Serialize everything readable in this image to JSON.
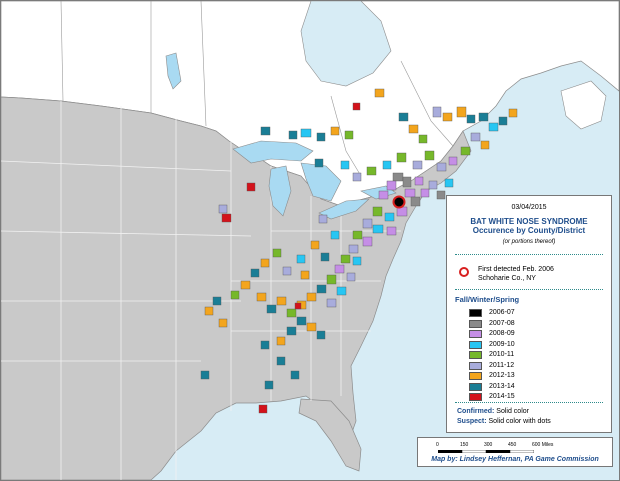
{
  "map": {
    "date": "03/04/2015",
    "title_line1": "BAT WHITE NOSE SYNDROME",
    "title_line2": "Occurence by County/District",
    "subtitle": "(or portions thereof)",
    "first_detected_line1": "First detected Feb. 2006",
    "first_detected_line2": "Schoharie Co., NY",
    "season_title": "Fall/Winter/Spring",
    "legend": [
      {
        "label": "2006-07",
        "color": "#000000"
      },
      {
        "label": "2007-08",
        "color": "#8a8a8a"
      },
      {
        "label": "2008-09",
        "color": "#c58ee6"
      },
      {
        "label": "2009-10",
        "color": "#27c6f3"
      },
      {
        "label": "2010-11",
        "color": "#76b82a"
      },
      {
        "label": "2011-12",
        "color": "#a8acdc"
      },
      {
        "label": "2012-13",
        "color": "#f3a51d"
      },
      {
        "label": "2013-14",
        "color": "#1a7e96"
      },
      {
        "label": "2014-15",
        "color": "#d3121b"
      }
    ],
    "confirmed_label": "Confirmed:",
    "confirmed_text": "Solid color",
    "suspect_label": "Suspect:",
    "suspect_text": "Solid color with dots",
    "scale_ticks": [
      "0",
      "150",
      "300",
      "450",
      "600 Miles"
    ],
    "credit": "Map by: Lindsey Heffernan, PA Game Commission",
    "colors": {
      "water": "#d7ecf5",
      "us_land": "#c9c9c9",
      "canada_land": "#ffffff",
      "border": "#8c8c8c",
      "lakes": "#a9daf2",
      "first_detected_circle": "#d81f1f"
    }
  }
}
